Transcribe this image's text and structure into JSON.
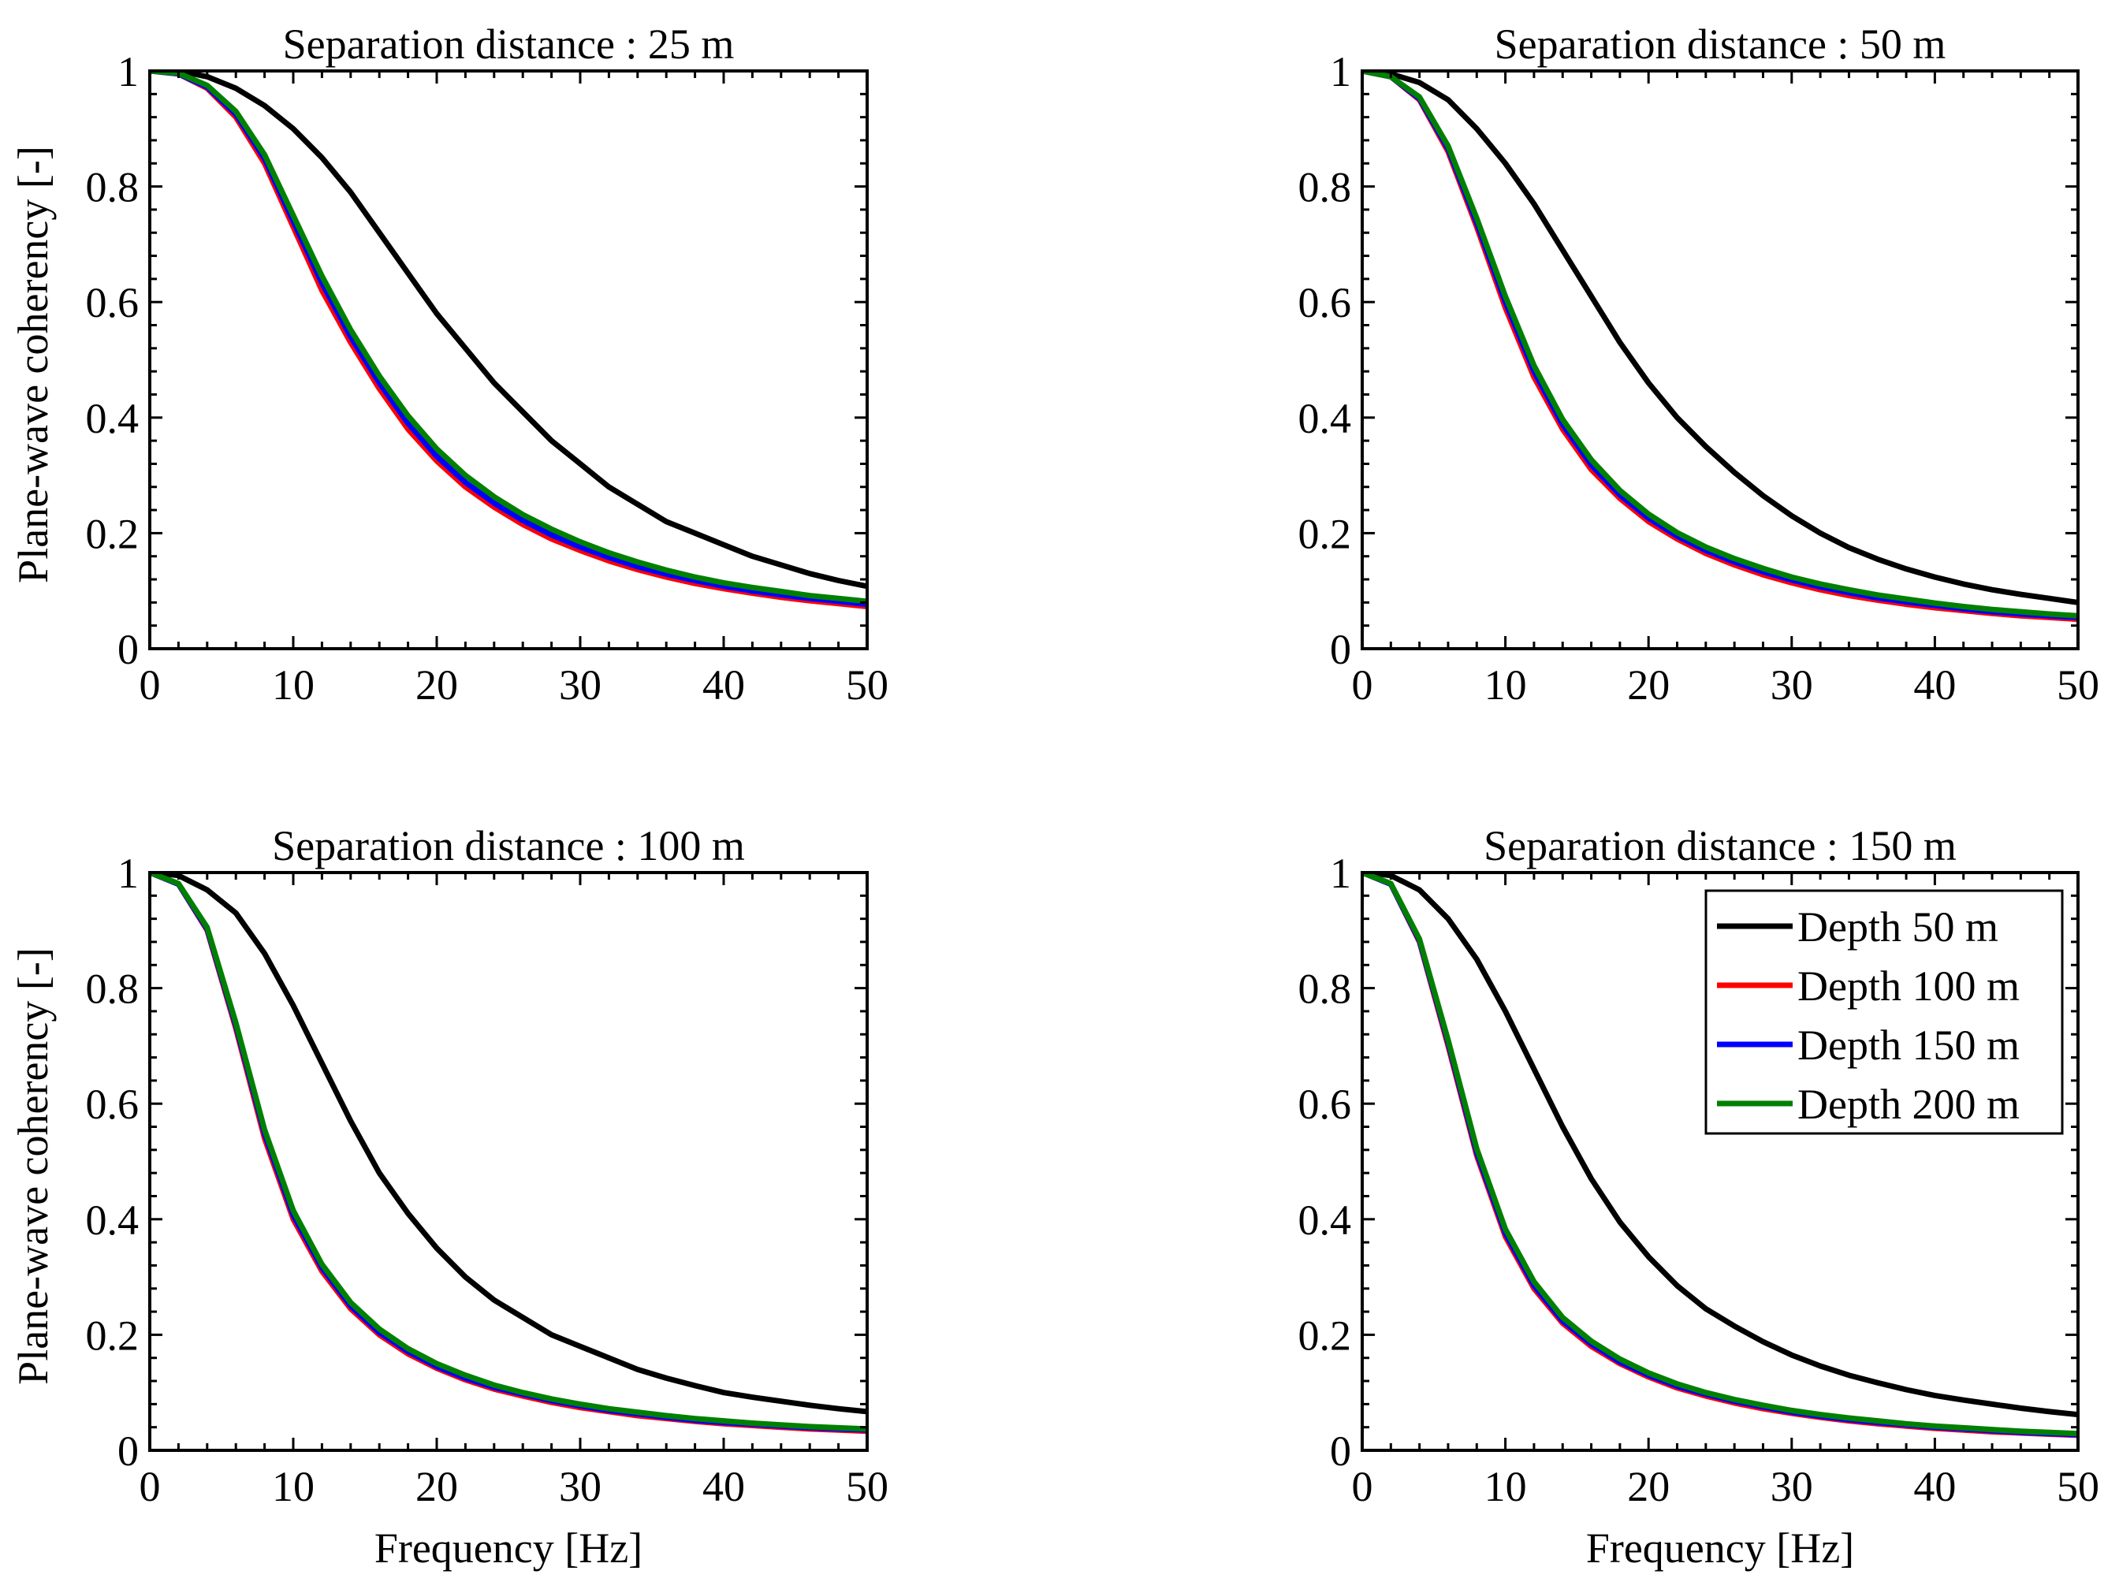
{
  "chart_data": [
    {
      "type": "line",
      "title": "Separation distance : 25 m",
      "xlabel": "",
      "ylabel": "Plane-wave coherency [-]",
      "xlim": [
        0,
        50
      ],
      "ylim": [
        0,
        1
      ],
      "xticks": [
        0,
        10,
        20,
        30,
        40,
        50
      ],
      "yticks": [
        0,
        0.2,
        0.4,
        0.6,
        0.8,
        1
      ],
      "ytick_labels": [
        "0",
        "0.2",
        "0.4",
        "0.6",
        "0.8",
        "1"
      ],
      "grid": false,
      "x": [
        0,
        2,
        4,
        6,
        8,
        10,
        12,
        14,
        16,
        18,
        20,
        22,
        24,
        26,
        28,
        30,
        32,
        34,
        36,
        38,
        40,
        42,
        44,
        46,
        48,
        50
      ],
      "series": [
        {
          "name": "Depth 50 m",
          "color": "#000000",
          "values": [
            1.0,
            1.0,
            0.99,
            0.97,
            0.94,
            0.9,
            0.85,
            0.79,
            0.72,
            0.65,
            0.58,
            0.52,
            0.46,
            0.41,
            0.36,
            0.32,
            0.28,
            0.25,
            0.22,
            0.2,
            0.18,
            0.16,
            0.145,
            0.13,
            0.118,
            0.108
          ]
        },
        {
          "name": "Depth 100 m",
          "color": "#ff0000",
          "values": [
            1.0,
            0.995,
            0.97,
            0.92,
            0.84,
            0.73,
            0.62,
            0.53,
            0.45,
            0.38,
            0.325,
            0.28,
            0.245,
            0.215,
            0.19,
            0.17,
            0.152,
            0.137,
            0.124,
            0.113,
            0.104,
            0.096,
            0.089,
            0.083,
            0.078,
            0.073
          ]
        },
        {
          "name": "Depth 150 m",
          "color": "#0000ff",
          "values": [
            1.0,
            0.995,
            0.972,
            0.925,
            0.848,
            0.74,
            0.633,
            0.54,
            0.46,
            0.39,
            0.333,
            0.288,
            0.252,
            0.222,
            0.197,
            0.176,
            0.158,
            0.142,
            0.129,
            0.118,
            0.108,
            0.1,
            0.093,
            0.087,
            0.082,
            0.077
          ]
        },
        {
          "name": "Depth 200 m",
          "color": "#008000",
          "values": [
            1.0,
            0.996,
            0.975,
            0.93,
            0.855,
            0.75,
            0.645,
            0.552,
            0.472,
            0.403,
            0.346,
            0.3,
            0.263,
            0.232,
            0.207,
            0.185,
            0.166,
            0.15,
            0.136,
            0.124,
            0.114,
            0.106,
            0.099,
            0.092,
            0.087,
            0.082
          ]
        }
      ]
    },
    {
      "type": "line",
      "title": "Separation distance : 50 m",
      "xlabel": "",
      "ylabel": "",
      "xlim": [
        0,
        50
      ],
      "ylim": [
        0,
        1
      ],
      "xticks": [
        0,
        10,
        20,
        30,
        40,
        50
      ],
      "yticks": [
        0,
        0.2,
        0.4,
        0.6,
        0.8,
        1
      ],
      "ytick_labels": [
        "0",
        "0.2",
        "0.4",
        "0.6",
        "0.8",
        "1"
      ],
      "grid": false,
      "x": [
        0,
        2,
        4,
        6,
        8,
        10,
        12,
        14,
        16,
        18,
        20,
        22,
        24,
        26,
        28,
        30,
        32,
        34,
        36,
        38,
        40,
        42,
        44,
        46,
        48,
        50
      ],
      "series": [
        {
          "name": "Depth 50 m",
          "color": "#000000",
          "values": [
            1.0,
            0.995,
            0.98,
            0.95,
            0.9,
            0.84,
            0.77,
            0.69,
            0.61,
            0.53,
            0.46,
            0.4,
            0.35,
            0.305,
            0.265,
            0.23,
            0.2,
            0.175,
            0.155,
            0.138,
            0.124,
            0.112,
            0.102,
            0.094,
            0.087,
            0.08
          ]
        },
        {
          "name": "Depth 100 m",
          "color": "#ff0000",
          "values": [
            1.0,
            0.99,
            0.95,
            0.86,
            0.73,
            0.59,
            0.47,
            0.38,
            0.31,
            0.26,
            0.22,
            0.19,
            0.165,
            0.145,
            0.128,
            0.114,
            0.102,
            0.092,
            0.084,
            0.077,
            0.071,
            0.066,
            0.061,
            0.057,
            0.054,
            0.051
          ]
        },
        {
          "name": "Depth 150 m",
          "color": "#0000ff",
          "values": [
            1.0,
            0.99,
            0.952,
            0.865,
            0.737,
            0.6,
            0.48,
            0.388,
            0.318,
            0.266,
            0.226,
            0.195,
            0.17,
            0.15,
            0.133,
            0.119,
            0.107,
            0.097,
            0.088,
            0.081,
            0.075,
            0.069,
            0.064,
            0.06,
            0.057,
            0.054
          ]
        },
        {
          "name": "Depth 200 m",
          "color": "#008000",
          "values": [
            1.0,
            0.99,
            0.955,
            0.87,
            0.745,
            0.61,
            0.49,
            0.397,
            0.327,
            0.274,
            0.233,
            0.201,
            0.176,
            0.156,
            0.139,
            0.124,
            0.112,
            0.102,
            0.093,
            0.086,
            0.079,
            0.073,
            0.068,
            0.064,
            0.06,
            0.057
          ]
        }
      ]
    },
    {
      "type": "line",
      "title": "Separation distance : 100 m",
      "xlabel": "Frequency [Hz]",
      "ylabel": "Plane-wave coherency [-]",
      "xlim": [
        0,
        50
      ],
      "ylim": [
        0,
        1
      ],
      "xticks": [
        0,
        10,
        20,
        30,
        40,
        50
      ],
      "yticks": [
        0,
        0.2,
        0.4,
        0.6,
        0.8,
        1
      ],
      "ytick_labels": [
        "0",
        "0.2",
        "0.4",
        "0.6",
        "0.8",
        "1"
      ],
      "grid": false,
      "x": [
        0,
        2,
        4,
        6,
        8,
        10,
        12,
        14,
        16,
        18,
        20,
        22,
        24,
        26,
        28,
        30,
        32,
        34,
        36,
        38,
        40,
        42,
        44,
        46,
        48,
        50
      ],
      "series": [
        {
          "name": "Depth 50 m",
          "color": "#000000",
          "values": [
            1.0,
            0.995,
            0.97,
            0.93,
            0.86,
            0.77,
            0.67,
            0.57,
            0.48,
            0.41,
            0.35,
            0.3,
            0.26,
            0.23,
            0.2,
            0.18,
            0.16,
            0.14,
            0.125,
            0.112,
            0.1,
            0.092,
            0.085,
            0.078,
            0.072,
            0.067
          ]
        },
        {
          "name": "Depth 100 m",
          "color": "#ff0000",
          "values": [
            1.0,
            0.98,
            0.9,
            0.73,
            0.54,
            0.4,
            0.31,
            0.245,
            0.2,
            0.167,
            0.142,
            0.122,
            0.106,
            0.094,
            0.083,
            0.074,
            0.067,
            0.06,
            0.055,
            0.05,
            0.046,
            0.043,
            0.04,
            0.037,
            0.035,
            0.033
          ]
        },
        {
          "name": "Depth 150 m",
          "color": "#0000ff",
          "values": [
            1.0,
            0.98,
            0.902,
            0.735,
            0.548,
            0.407,
            0.316,
            0.25,
            0.204,
            0.171,
            0.145,
            0.125,
            0.109,
            0.097,
            0.086,
            0.077,
            0.069,
            0.063,
            0.057,
            0.052,
            0.048,
            0.045,
            0.042,
            0.039,
            0.037,
            0.035
          ]
        },
        {
          "name": "Depth 200 m",
          "color": "#008000",
          "values": [
            1.0,
            0.981,
            0.905,
            0.74,
            0.555,
            0.415,
            0.322,
            0.256,
            0.21,
            0.176,
            0.15,
            0.13,
            0.113,
            0.1,
            0.089,
            0.08,
            0.072,
            0.066,
            0.06,
            0.055,
            0.051,
            0.047,
            0.044,
            0.041,
            0.039,
            0.037
          ]
        }
      ]
    },
    {
      "type": "line",
      "title": "Separation distance : 150 m",
      "xlabel": "Frequency [Hz]",
      "ylabel": "",
      "xlim": [
        0,
        50
      ],
      "ylim": [
        0,
        1
      ],
      "xticks": [
        0,
        10,
        20,
        30,
        40,
        50
      ],
      "yticks": [
        0,
        0.2,
        0.4,
        0.6,
        0.8,
        1
      ],
      "ytick_labels": [
        "0",
        "0.2",
        "0.4",
        "0.6",
        "0.8",
        "1"
      ],
      "grid": false,
      "legend": {
        "position": "top-right",
        "entries": [
          "Depth 50 m",
          "Depth 100 m",
          "Depth 150 m",
          "Depth 200 m"
        ]
      },
      "x": [
        0,
        2,
        4,
        6,
        8,
        10,
        12,
        14,
        16,
        18,
        20,
        22,
        24,
        26,
        28,
        30,
        32,
        34,
        36,
        38,
        40,
        42,
        44,
        46,
        48,
        50
      ],
      "series": [
        {
          "name": "Depth 50 m",
          "color": "#000000",
          "values": [
            1.0,
            0.995,
            0.97,
            0.92,
            0.85,
            0.76,
            0.66,
            0.56,
            0.47,
            0.395,
            0.335,
            0.285,
            0.245,
            0.215,
            0.188,
            0.165,
            0.146,
            0.13,
            0.117,
            0.105,
            0.095,
            0.087,
            0.08,
            0.073,
            0.067,
            0.062
          ]
        },
        {
          "name": "Depth 100 m",
          "color": "#ff0000",
          "values": [
            1.0,
            0.98,
            0.88,
            0.7,
            0.51,
            0.37,
            0.28,
            0.22,
            0.18,
            0.15,
            0.127,
            0.108,
            0.094,
            0.082,
            0.072,
            0.064,
            0.057,
            0.051,
            0.046,
            0.042,
            0.038,
            0.035,
            0.032,
            0.03,
            0.028,
            0.026
          ]
        },
        {
          "name": "Depth 150 m",
          "color": "#0000ff",
          "values": [
            1.0,
            0.98,
            0.882,
            0.705,
            0.515,
            0.376,
            0.285,
            0.224,
            0.184,
            0.153,
            0.13,
            0.111,
            0.097,
            0.085,
            0.075,
            0.066,
            0.059,
            0.053,
            0.048,
            0.044,
            0.04,
            0.037,
            0.034,
            0.031,
            0.029,
            0.027
          ]
        },
        {
          "name": "Depth 200 m",
          "color": "#008000",
          "values": [
            1.0,
            0.981,
            0.885,
            0.71,
            0.522,
            0.383,
            0.292,
            0.23,
            0.189,
            0.158,
            0.134,
            0.115,
            0.1,
            0.088,
            0.078,
            0.069,
            0.062,
            0.056,
            0.051,
            0.046,
            0.042,
            0.039,
            0.036,
            0.033,
            0.031,
            0.029
          ]
        }
      ]
    }
  ]
}
